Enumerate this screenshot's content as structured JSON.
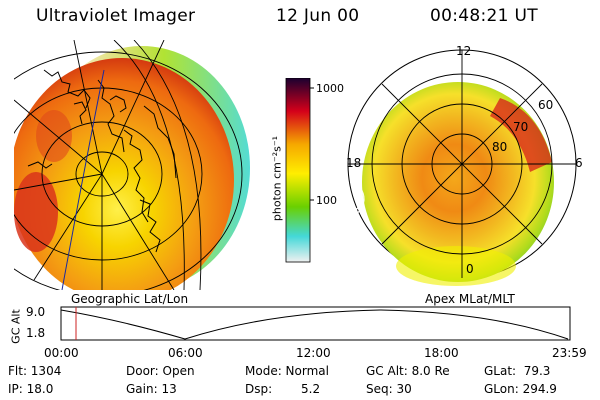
{
  "header": {
    "instrument": "Ultraviolet Imager",
    "date": "12 Jun 00",
    "time": "00:48:21 UT"
  },
  "colorbar": {
    "unit_label": "photon cm⁻²s⁻¹",
    "tick_top": "1000",
    "tick_mid": "100"
  },
  "panels": {
    "left_caption": "Geographic Lat/Lon",
    "right_caption": "Apex MLat/MLT"
  },
  "apex_labels": {
    "mlt_12": "12",
    "mlt_18": "18",
    "mlt_6": "6",
    "mlt_0": "0",
    "lat_60": "60",
    "lat_70": "70",
    "lat_80": "80"
  },
  "altitude_plot": {
    "ylabel": "GC Alt",
    "y_top": "9.0",
    "y_bottom": "1.8",
    "x_ticks": [
      "00:00",
      "06:00",
      "12:00",
      "18:00",
      "23:59"
    ]
  },
  "footer": {
    "flt": "Flt: 1304",
    "ip": "IP: 18.0",
    "door": "Door: Open",
    "gain": "Gain: 13",
    "mode": "Mode: Normal",
    "dsp_label": "Dsp:",
    "dsp_value": "5.2",
    "gc_alt": "GC Alt: 8.0 Re",
    "seq": "Seq: 30",
    "glat": "GLat:  79.3",
    "glon": "GLon: 294.9"
  },
  "colors": {
    "colorbar_top": "#1a0030",
    "colorbar_red": "#d4001a",
    "colorbar_orange": "#f6a800",
    "colorbar_yellow": "#ffee00",
    "colorbar_green": "#6ad000",
    "colorbar_cyan": "#44d8d8",
    "colorbar_bottom": "#f0f0f0",
    "marker": "#cc2222"
  }
}
